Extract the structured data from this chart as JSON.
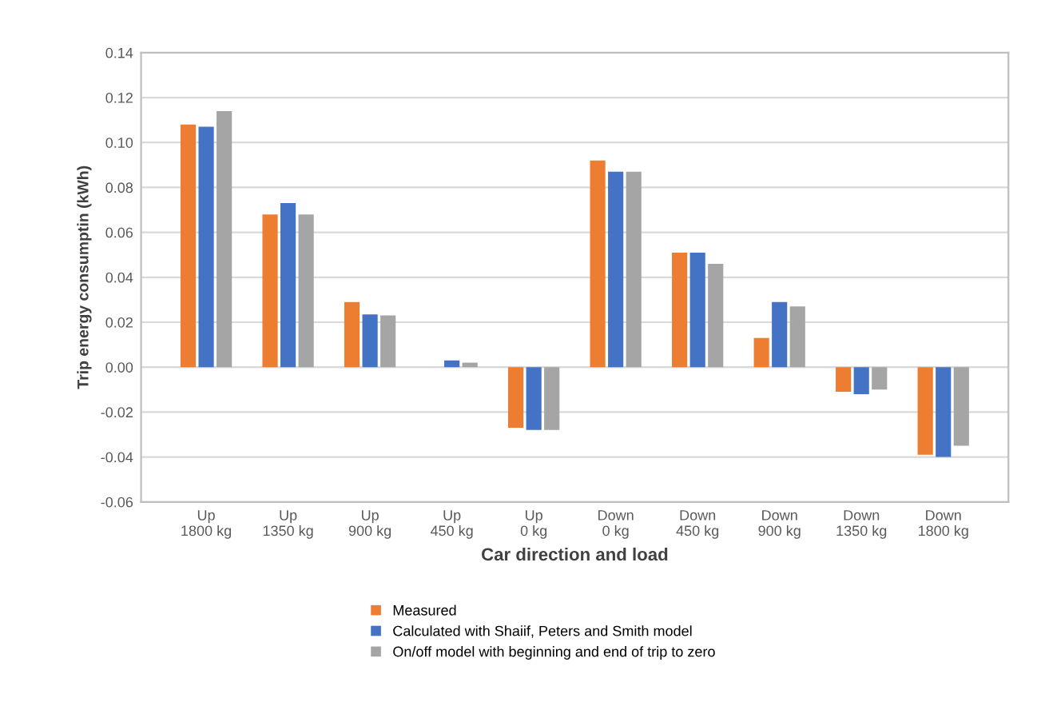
{
  "chart_data": {
    "type": "bar",
    "xlabel": "Car direction and load",
    "ylabel": "Trip energy consumptin (kWh)",
    "categories": [
      "Up\n1800 kg",
      "Up\n1350 kg",
      "Up\n900 kg",
      "Up\n450 kg",
      "Up\n0 kg",
      "Down\n0 kg",
      "Down\n450 kg",
      "Down\n900 kg",
      "Down\n1350 kg",
      "Down\n1800 kg"
    ],
    "series": [
      {
        "name": "Measured",
        "color": "#ed7d31",
        "values": [
          0.108,
          0.068,
          0.029,
          0.0,
          -0.027,
          0.092,
          0.051,
          0.013,
          -0.011,
          -0.039
        ]
      },
      {
        "name": "Calculated with Shaiif, Peters and Smith model",
        "color": "#4472c4",
        "values": [
          0.107,
          0.073,
          0.0235,
          0.003,
          -0.028,
          0.087,
          0.051,
          0.029,
          -0.012,
          -0.04
        ]
      },
      {
        "name": "On/off model with beginning and end of trip to zero",
        "color": "#a5a5a5",
        "values": [
          0.114,
          0.068,
          0.023,
          0.002,
          -0.028,
          0.087,
          0.046,
          0.027,
          -0.01,
          -0.035
        ]
      }
    ],
    "ylim": [
      -0.06,
      0.14
    ],
    "yticks": [
      {
        "value": -0.06,
        "label": "-0.06"
      },
      {
        "value": -0.04,
        "label": "-0.04"
      },
      {
        "value": -0.02,
        "label": "-0.02"
      },
      {
        "value": 0,
        "label": "0.00"
      },
      {
        "value": 0.02,
        "label": "0.02"
      },
      {
        "value": 0.04,
        "label": "0.04"
      },
      {
        "value": 0.06,
        "label": "0.06"
      },
      {
        "value": 0.08,
        "label": "0.08"
      },
      {
        "value": 0.1,
        "label": "0.10"
      },
      {
        "value": 0.12,
        "label": "0.12"
      },
      {
        "value": 0.14,
        "label": "0.14"
      }
    ],
    "grid": "y",
    "legend": "bottom"
  }
}
